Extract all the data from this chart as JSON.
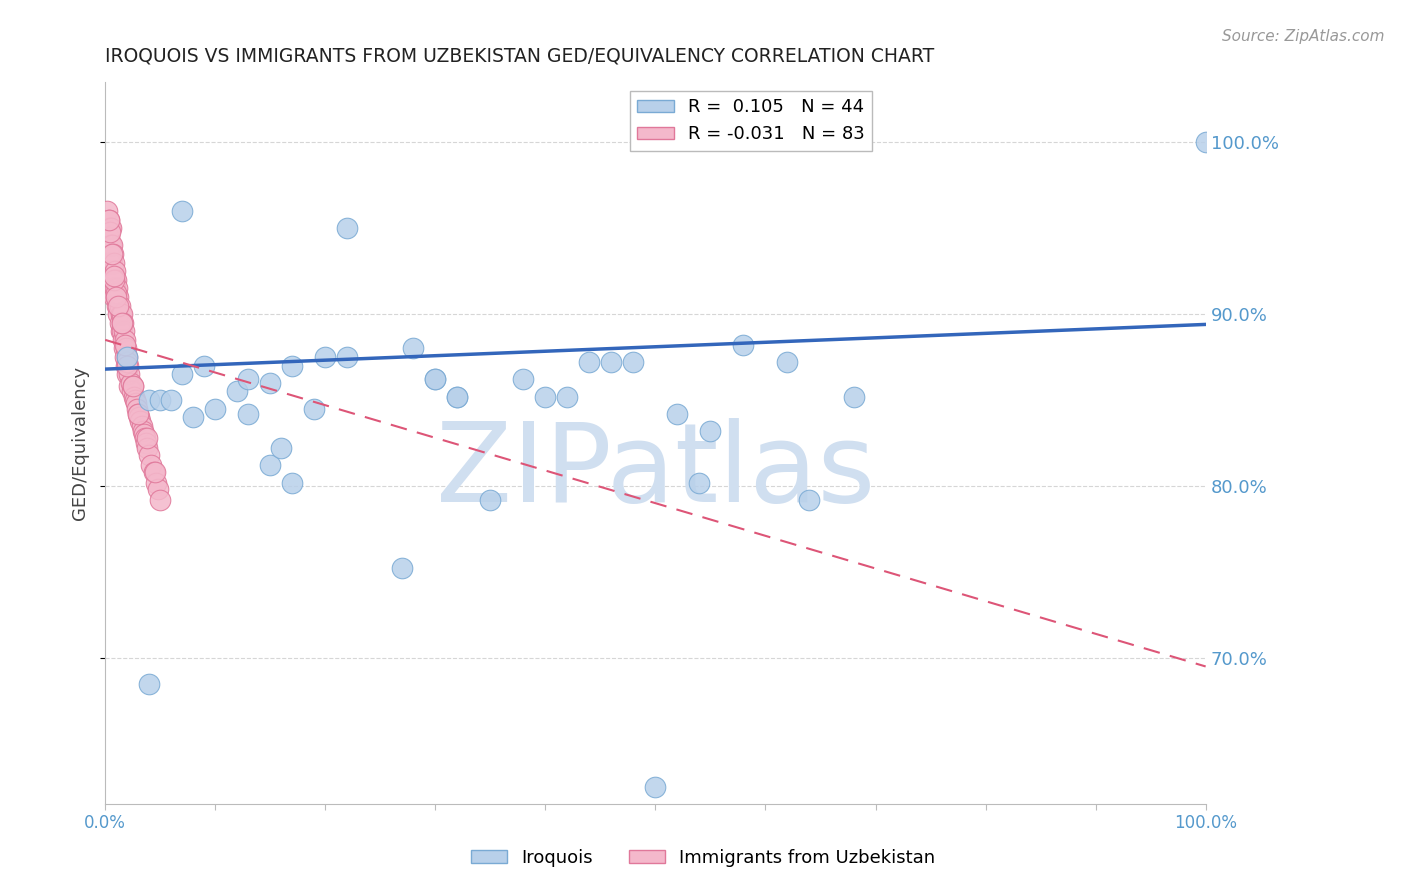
{
  "title": "IROQUOIS VS IMMIGRANTS FROM UZBEKISTAN GED/EQUIVALENCY CORRELATION CHART",
  "source": "Source: ZipAtlas.com",
  "ylabel": "GED/Equivalency",
  "xlim": [
    0,
    1
  ],
  "ylim": [
    0.615,
    1.035
  ],
  "yticks": [
    0.7,
    0.8,
    0.9,
    1.0
  ],
  "ytick_labels": [
    "70.0%",
    "80.0%",
    "90.0%",
    "100.0%"
  ],
  "xticks": [
    0.0,
    0.1,
    0.2,
    0.3,
    0.4,
    0.5,
    0.6,
    0.7,
    0.8,
    0.9,
    1.0
  ],
  "xtick_labels": [
    "0.0%",
    "",
    "",
    "",
    "",
    "",
    "",
    "",
    "",
    "",
    "100.0%"
  ],
  "blue_R": 0.105,
  "blue_N": 44,
  "pink_R": -0.031,
  "pink_N": 83,
  "blue_label": "Iroquois",
  "pink_label": "Immigrants from Uzbekistan",
  "blue_color": "#b8d0ea",
  "blue_edge": "#7aaad4",
  "pink_color": "#f4b8cb",
  "pink_edge": "#e0789a",
  "blue_line_color": "#3366bb",
  "pink_line_color": "#dd5577",
  "watermark_color": "#d0dff0",
  "title_color": "#222222",
  "axis_label_color": "#444444",
  "tick_label_color": "#5599cc",
  "grid_color": "#cccccc",
  "blue_x": [
    0.02,
    0.07,
    0.22,
    0.22,
    0.04,
    0.07,
    0.09,
    0.1,
    0.12,
    0.15,
    0.05,
    0.06,
    0.08,
    0.17,
    0.19,
    0.2,
    0.28,
    0.3,
    0.32,
    0.38,
    0.4,
    0.44,
    0.48,
    0.52,
    0.55,
    0.58,
    0.62,
    0.68,
    0.04,
    0.27,
    0.35,
    0.54,
    0.64,
    1.0,
    0.5,
    0.13,
    0.13,
    0.15,
    0.16,
    0.17,
    0.3,
    0.32,
    0.42,
    0.46
  ],
  "blue_y": [
    0.875,
    0.96,
    0.875,
    0.95,
    0.85,
    0.865,
    0.87,
    0.845,
    0.855,
    0.86,
    0.85,
    0.85,
    0.84,
    0.87,
    0.845,
    0.875,
    0.88,
    0.862,
    0.852,
    0.862,
    0.852,
    0.872,
    0.872,
    0.842,
    0.832,
    0.882,
    0.872,
    0.852,
    0.685,
    0.752,
    0.792,
    0.802,
    0.792,
    1.0,
    0.625,
    0.862,
    0.842,
    0.812,
    0.822,
    0.802,
    0.862,
    0.852,
    0.852,
    0.872
  ],
  "pink_x": [
    0.002,
    0.003,
    0.003,
    0.004,
    0.004,
    0.004,
    0.005,
    0.005,
    0.005,
    0.006,
    0.006,
    0.007,
    0.007,
    0.007,
    0.008,
    0.008,
    0.008,
    0.009,
    0.009,
    0.01,
    0.01,
    0.011,
    0.011,
    0.012,
    0.012,
    0.013,
    0.013,
    0.014,
    0.014,
    0.015,
    0.015,
    0.016,
    0.016,
    0.017,
    0.017,
    0.018,
    0.018,
    0.019,
    0.019,
    0.02,
    0.02,
    0.021,
    0.022,
    0.022,
    0.023,
    0.024,
    0.025,
    0.026,
    0.027,
    0.028,
    0.029,
    0.03,
    0.031,
    0.032,
    0.033,
    0.034,
    0.035,
    0.036,
    0.037,
    0.038,
    0.04,
    0.042,
    0.044,
    0.046,
    0.048,
    0.05,
    0.02,
    0.015,
    0.01,
    0.008,
    0.006,
    0.004,
    0.003,
    0.008,
    0.01,
    0.012,
    0.015,
    0.018,
    0.02,
    0.025,
    0.03,
    0.038,
    0.045
  ],
  "pink_y": [
    0.96,
    0.955,
    0.945,
    0.95,
    0.94,
    0.93,
    0.95,
    0.94,
    0.93,
    0.94,
    0.93,
    0.935,
    0.925,
    0.915,
    0.93,
    0.92,
    0.91,
    0.925,
    0.915,
    0.92,
    0.91,
    0.915,
    0.905,
    0.91,
    0.9,
    0.905,
    0.895,
    0.9,
    0.89,
    0.9,
    0.89,
    0.895,
    0.885,
    0.89,
    0.88,
    0.885,
    0.875,
    0.88,
    0.87,
    0.875,
    0.865,
    0.87,
    0.865,
    0.858,
    0.86,
    0.855,
    0.858,
    0.852,
    0.85,
    0.848,
    0.845,
    0.842,
    0.84,
    0.838,
    0.835,
    0.832,
    0.83,
    0.828,
    0.825,
    0.822,
    0.818,
    0.812,
    0.808,
    0.802,
    0.798,
    0.792,
    0.872,
    0.895,
    0.912,
    0.92,
    0.935,
    0.948,
    0.955,
    0.922,
    0.91,
    0.905,
    0.895,
    0.882,
    0.87,
    0.858,
    0.842,
    0.828,
    0.808
  ],
  "blue_trend_x": [
    0.0,
    1.0
  ],
  "blue_trend_y": [
    0.868,
    0.894
  ],
  "pink_trend_x": [
    0.0,
    1.0
  ],
  "pink_trend_y": [
    0.885,
    0.695
  ]
}
